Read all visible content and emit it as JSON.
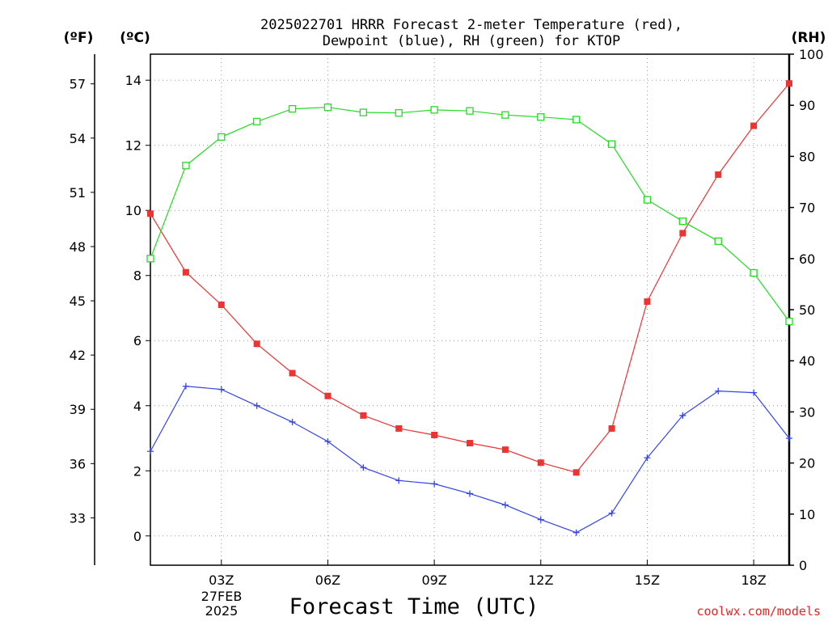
{
  "chart_data": {
    "type": "line",
    "title": [
      "2025022701 HRRR Forecast 2-meter Temperature (red),",
      "Dewpoint (blue), RH (green) for KTOP"
    ],
    "xlabel": "Forecast Time (UTC)",
    "credit": "coolwx.com/models",
    "units": {
      "fahrenheit": "(ºF)",
      "celsius": "(ºC)",
      "rh": "(RH)"
    },
    "x": [
      "01Z",
      "02Z",
      "03Z",
      "04Z",
      "05Z",
      "06Z",
      "07Z",
      "08Z",
      "09Z",
      "10Z",
      "11Z",
      "12Z",
      "13Z",
      "14Z",
      "15Z",
      "16Z",
      "17Z",
      "18Z",
      "19Z"
    ],
    "x_tick_labels": [
      {
        "hour": "03Z",
        "label": "03Z"
      },
      {
        "hour": "06Z",
        "label": "06Z"
      },
      {
        "hour": "09Z",
        "label": "09Z"
      },
      {
        "hour": "12Z",
        "label": "12Z"
      },
      {
        "hour": "15Z",
        "label": "15Z"
      },
      {
        "hour": "18Z",
        "label": "18Z"
      }
    ],
    "date_label": [
      "27FEB",
      "2025"
    ],
    "celsius_axis": {
      "ylim": [
        -0.9,
        14.8
      ],
      "ticks": [
        0,
        2,
        4,
        6,
        8,
        10,
        12,
        14
      ]
    },
    "fahrenheit_axis": {
      "ticks": [
        33,
        36,
        39,
        42,
        45,
        48,
        51,
        54,
        57
      ]
    },
    "rh_axis": {
      "ylim": [
        0,
        100
      ],
      "ticks": [
        0,
        10,
        20,
        30,
        40,
        50,
        60,
        70,
        80,
        90,
        100
      ]
    },
    "grid": true,
    "series": [
      {
        "name": "Temperature",
        "axis": "celsius",
        "color": "#ee3333",
        "marker": "filled-square",
        "values": [
          9.9,
          8.1,
          7.1,
          5.9,
          5.0,
          4.3,
          3.7,
          3.3,
          3.1,
          2.85,
          2.65,
          2.25,
          1.95,
          3.3,
          7.2,
          9.3,
          11.1,
          12.6,
          13.9
        ]
      },
      {
        "name": "Dewpoint",
        "axis": "celsius",
        "color": "#3344ee",
        "marker": "plus",
        "values": [
          2.6,
          4.6,
          4.5,
          4.0,
          3.5,
          2.9,
          2.1,
          1.7,
          1.6,
          1.3,
          0.95,
          0.5,
          0.1,
          0.7,
          2.4,
          3.7,
          4.45,
          4.4,
          3.0
        ]
      },
      {
        "name": "RH",
        "axis": "rh",
        "color": "#22dd22",
        "marker": "open-square",
        "values": [
          60.0,
          78.2,
          83.8,
          86.8,
          89.3,
          89.6,
          88.6,
          88.5,
          89.1,
          88.9,
          88.1,
          87.7,
          87.2,
          82.4,
          71.5,
          67.3,
          63.4,
          57.2,
          47.7
        ]
      }
    ]
  }
}
